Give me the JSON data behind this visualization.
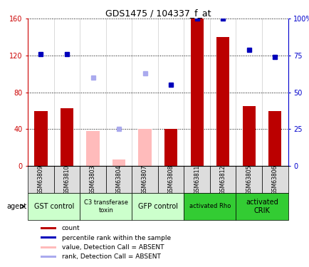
{
  "title": "GDS1475 / 104337_f_at",
  "samples": [
    "GSM63809",
    "GSM63810",
    "GSM63803",
    "GSM63804",
    "GSM63807",
    "GSM63808",
    "GSM63811",
    "GSM63812",
    "GSM63805",
    "GSM63806"
  ],
  "count_values": [
    60,
    63,
    null,
    null,
    null,
    40,
    160,
    140,
    65,
    60
  ],
  "count_absent": [
    null,
    null,
    38,
    7,
    40,
    null,
    null,
    null,
    null,
    null
  ],
  "percentile_values": [
    76,
    76,
    null,
    null,
    null,
    55,
    100,
    100,
    79,
    74
  ],
  "percentile_absent": [
    null,
    null,
    60,
    25,
    63,
    null,
    null,
    null,
    null,
    null
  ],
  "ylim_left": [
    0,
    160
  ],
  "ylim_right": [
    0,
    100
  ],
  "yticks_left": [
    0,
    40,
    80,
    120,
    160
  ],
  "yticks_right": [
    0,
    25,
    50,
    75,
    100
  ],
  "ytick_labels_left": [
    "0",
    "40",
    "80",
    "120",
    "160"
  ],
  "ytick_labels_right": [
    "0",
    "25",
    "50",
    "75",
    "100%"
  ],
  "groups": [
    {
      "label": "GST control",
      "start": 0,
      "end": 2,
      "color": "#ccffcc",
      "font_size": 7
    },
    {
      "label": "C3 transferase\ntoxin",
      "start": 2,
      "end": 4,
      "color": "#ccffcc",
      "font_size": 6
    },
    {
      "label": "GFP control",
      "start": 4,
      "end": 6,
      "color": "#ccffcc",
      "font_size": 7
    },
    {
      "label": "activated Rho",
      "start": 6,
      "end": 8,
      "color": "#33cc33",
      "font_size": 6
    },
    {
      "label": "activated\nCRIK",
      "start": 8,
      "end": 10,
      "color": "#33cc33",
      "font_size": 7
    }
  ],
  "bar_color": "#bb0000",
  "bar_absent_color": "#ffbbbb",
  "dot_color": "#0000bb",
  "dot_absent_color": "#aaaaee",
  "agent_label": "agent",
  "legend_items": [
    {
      "color": "#bb0000",
      "label": "count"
    },
    {
      "color": "#0000bb",
      "label": "percentile rank within the sample"
    },
    {
      "color": "#ffbbbb",
      "label": "value, Detection Call = ABSENT"
    },
    {
      "color": "#aaaaee",
      "label": "rank, Detection Call = ABSENT"
    }
  ]
}
